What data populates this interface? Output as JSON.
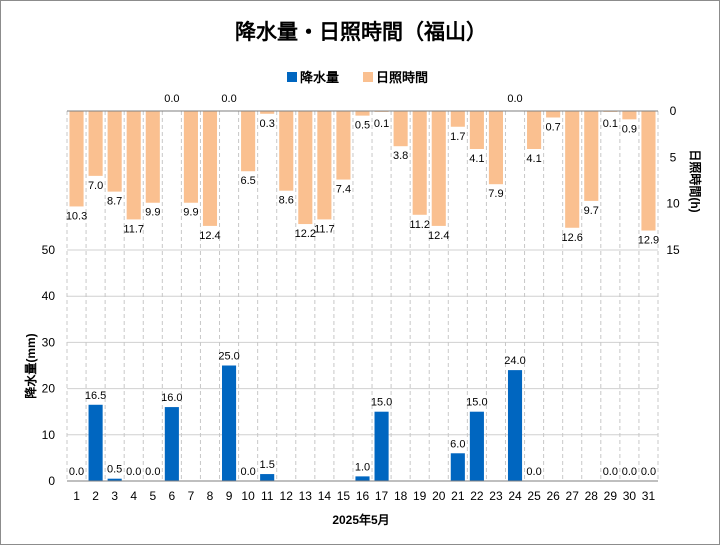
{
  "chart_data": {
    "type": "bar",
    "title": "降水量・日照時間（福山）",
    "xlabel": "2025年5月",
    "categories": [
      "1",
      "2",
      "3",
      "4",
      "5",
      "6",
      "7",
      "8",
      "9",
      "10",
      "11",
      "12",
      "13",
      "14",
      "15",
      "16",
      "17",
      "18",
      "19",
      "20",
      "21",
      "22",
      "23",
      "24",
      "25",
      "26",
      "27",
      "28",
      "29",
      "30",
      "31"
    ],
    "series": [
      {
        "name": "降水量",
        "axis": "left",
        "unit_label": "降水量(mm)",
        "color": "#0066c0",
        "ylim": [
          0,
          50
        ],
        "ticks": [
          "0",
          "10",
          "20",
          "30",
          "40",
          "50"
        ],
        "values": [
          0,
          16.5,
          0.5,
          0,
          0,
          16,
          null,
          null,
          25,
          0,
          1.5,
          null,
          null,
          null,
          null,
          1,
          15,
          null,
          null,
          null,
          6,
          15,
          null,
          24,
          0,
          null,
          null,
          null,
          0,
          0,
          0
        ],
        "labels": [
          "0.0",
          "16.5",
          "0.5",
          "0.0",
          "0.0",
          "16.0",
          "",
          "",
          "25.0",
          "0.0",
          "1.5",
          "",
          "",
          "",
          "",
          "1.0",
          "15.0",
          "",
          "",
          "",
          "6.0",
          "15.0",
          "",
          "24.0",
          "0.0",
          "",
          "",
          "",
          "0.0",
          "0.0",
          "0.0"
        ]
      },
      {
        "name": "日照時間",
        "axis": "right",
        "unit_label": "日照時間(h)",
        "color": "#fac090",
        "ylim": [
          0,
          15
        ],
        "inverted": true,
        "ticks": [
          "0",
          "5",
          "10",
          "15"
        ],
        "values": [
          10.3,
          7.0,
          8.7,
          11.7,
          9.9,
          0.0,
          9.9,
          12.4,
          0.0,
          6.5,
          0.3,
          8.6,
          12.2,
          11.7,
          7.4,
          0.5,
          0.1,
          3.8,
          11.2,
          12.4,
          1.7,
          4.1,
          7.9,
          0.0,
          4.1,
          0.7,
          12.6,
          9.7,
          0.1,
          0.9,
          12.9
        ],
        "labels": [
          "10.3",
          "7.0",
          "8.7",
          "11.7",
          "9.9",
          "0.0",
          "9.9",
          "12.4",
          "0.0",
          "6.5",
          "0.3",
          "8.6",
          "12.2",
          "11.7",
          "7.4",
          "0.5",
          "0.1",
          "3.8",
          "11.2",
          "12.4",
          "1.7",
          "4.1",
          "7.9",
          "0.0",
          "4.1",
          "0.7",
          "12.6",
          "9.7",
          "0.1",
          "0.9",
          "12.9"
        ]
      }
    ],
    "legend": "top-center",
    "grid": true
  }
}
